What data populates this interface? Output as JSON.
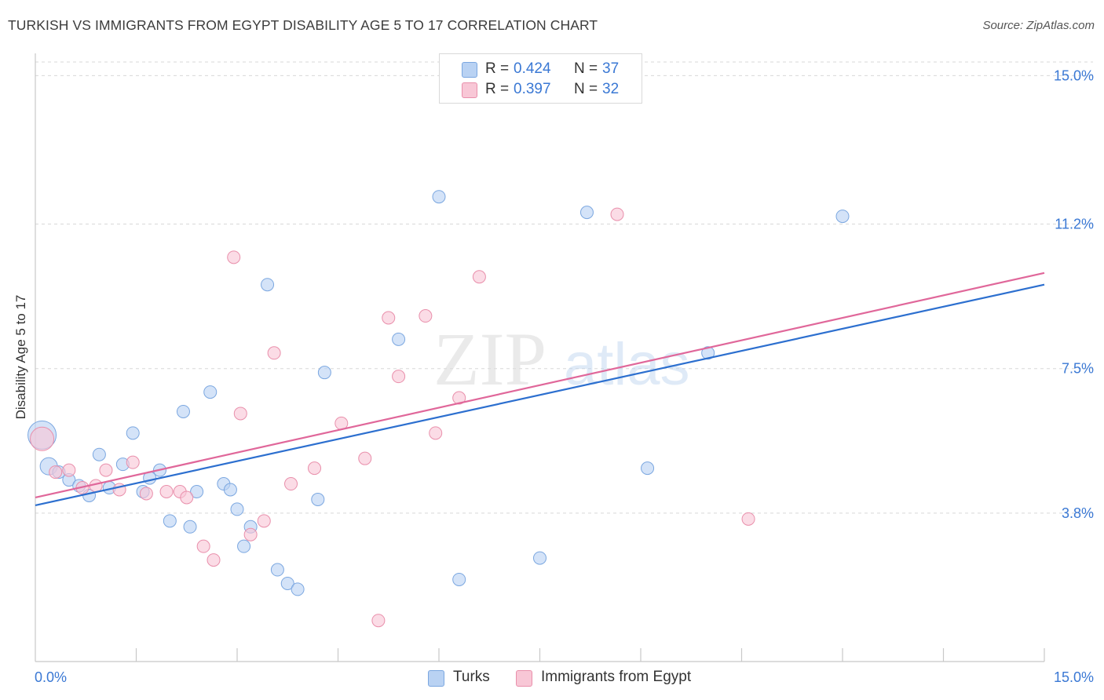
{
  "title": "TURKISH VS IMMIGRANTS FROM EGYPT DISABILITY AGE 5 TO 17 CORRELATION CHART",
  "source": "Source: ZipAtlas.com",
  "watermark": {
    "zip": "ZIP",
    "atlas": "atlas"
  },
  "colors": {
    "turks_fill": "#b9d2f3",
    "turks_stroke": "#7ba7e0",
    "turks_line": "#2c6fcf",
    "egypt_fill": "#f8c7d6",
    "egypt_stroke": "#e98fab",
    "egypt_line": "#e0679a",
    "axis_text": "#3a78d4",
    "grid": "#d8d8d8"
  },
  "legend_top": [
    {
      "series": "Turks",
      "r_label": "R =",
      "r_value": "0.424",
      "n_label": "N =",
      "n_value": "37"
    },
    {
      "series": "Immigrants from Egypt",
      "r_label": "R =",
      "r_value": "0.397",
      "n_label": "N =",
      "n_value": "32"
    }
  ],
  "chart_data": {
    "type": "scatter",
    "title": "TURKISH VS IMMIGRANTS FROM EGYPT DISABILITY AGE 5 TO 17 CORRELATION CHART",
    "xlabel": "",
    "ylabel": "Disability Age 5 to 17",
    "xlim": [
      0,
      15
    ],
    "ylim": [
      0,
      15.35
    ],
    "x_tick_labels": [
      {
        "value": 0,
        "label": "0.0%"
      },
      {
        "value": 15,
        "label": "15.0%"
      }
    ],
    "y_tick_labels": [
      {
        "value": 3.8,
        "label": "3.8%"
      },
      {
        "value": 7.5,
        "label": "7.5%"
      },
      {
        "value": 11.2,
        "label": "11.2%"
      },
      {
        "value": 15.0,
        "label": "15.0%"
      }
    ],
    "y_gridlines": [
      3.8,
      7.5,
      11.2,
      15.0
    ],
    "x_minor_ticks": [
      1.5,
      3.0,
      4.5,
      6.0,
      7.5,
      9.0,
      10.5,
      12.0,
      13.5,
      15.0
    ],
    "legend": [
      "Turks",
      "Immigrants from Egypt"
    ],
    "series": [
      {
        "name": "Turks",
        "r": 0.424,
        "n": 37,
        "trend": {
          "x": [
            0,
            15
          ],
          "y": [
            4.0,
            9.65
          ]
        },
        "points": [
          {
            "x": 0.1,
            "y": 5.8,
            "size": 18
          },
          {
            "x": 0.2,
            "y": 5.0,
            "size": 11
          },
          {
            "x": 0.35,
            "y": 4.85
          },
          {
            "x": 0.5,
            "y": 4.65
          },
          {
            "x": 0.65,
            "y": 4.5
          },
          {
            "x": 0.8,
            "y": 4.25
          },
          {
            "x": 0.95,
            "y": 5.3
          },
          {
            "x": 1.1,
            "y": 4.45
          },
          {
            "x": 1.3,
            "y": 5.05
          },
          {
            "x": 1.45,
            "y": 5.85
          },
          {
            "x": 1.6,
            "y": 4.35
          },
          {
            "x": 1.7,
            "y": 4.7
          },
          {
            "x": 1.85,
            "y": 4.9
          },
          {
            "x": 2.0,
            "y": 3.6
          },
          {
            "x": 2.2,
            "y": 6.4
          },
          {
            "x": 2.3,
            "y": 3.45
          },
          {
            "x": 2.4,
            "y": 4.35
          },
          {
            "x": 2.6,
            "y": 6.9
          },
          {
            "x": 2.8,
            "y": 4.55
          },
          {
            "x": 2.9,
            "y": 4.4
          },
          {
            "x": 3.0,
            "y": 3.9
          },
          {
            "x": 3.1,
            "y": 2.95
          },
          {
            "x": 3.2,
            "y": 3.45
          },
          {
            "x": 3.45,
            "y": 9.65
          },
          {
            "x": 3.6,
            "y": 2.35
          },
          {
            "x": 3.75,
            "y": 2.0
          },
          {
            "x": 3.9,
            "y": 1.85
          },
          {
            "x": 4.2,
            "y": 4.15
          },
          {
            "x": 4.3,
            "y": 7.4
          },
          {
            "x": 5.4,
            "y": 8.25
          },
          {
            "x": 6.0,
            "y": 11.9
          },
          {
            "x": 6.3,
            "y": 2.1
          },
          {
            "x": 7.5,
            "y": 2.65
          },
          {
            "x": 8.2,
            "y": 11.5
          },
          {
            "x": 9.1,
            "y": 4.95
          },
          {
            "x": 10.0,
            "y": 7.9
          },
          {
            "x": 12.0,
            "y": 11.4
          }
        ]
      },
      {
        "name": "Immigrants from Egypt",
        "r": 0.397,
        "n": 32,
        "trend": {
          "x": [
            0,
            15
          ],
          "y": [
            4.2,
            9.95
          ]
        },
        "points": [
          {
            "x": 0.1,
            "y": 5.7,
            "size": 15
          },
          {
            "x": 0.3,
            "y": 4.85
          },
          {
            "x": 0.5,
            "y": 4.9
          },
          {
            "x": 0.7,
            "y": 4.45
          },
          {
            "x": 0.9,
            "y": 4.5
          },
          {
            "x": 1.05,
            "y": 4.9
          },
          {
            "x": 1.25,
            "y": 4.4
          },
          {
            "x": 1.45,
            "y": 5.1
          },
          {
            "x": 1.65,
            "y": 4.3
          },
          {
            "x": 1.95,
            "y": 4.35
          },
          {
            "x": 2.15,
            "y": 4.35
          },
          {
            "x": 2.25,
            "y": 4.2
          },
          {
            "x": 2.5,
            "y": 2.95
          },
          {
            "x": 2.65,
            "y": 2.6
          },
          {
            "x": 2.95,
            "y": 10.35
          },
          {
            "x": 3.05,
            "y": 6.35
          },
          {
            "x": 3.2,
            "y": 3.25
          },
          {
            "x": 3.4,
            "y": 3.6
          },
          {
            "x": 3.55,
            "y": 7.9
          },
          {
            "x": 3.8,
            "y": 4.55
          },
          {
            "x": 4.15,
            "y": 4.95
          },
          {
            "x": 4.55,
            "y": 6.1
          },
          {
            "x": 4.9,
            "y": 5.2
          },
          {
            "x": 5.1,
            "y": 1.05
          },
          {
            "x": 5.25,
            "y": 8.8
          },
          {
            "x": 5.4,
            "y": 7.3
          },
          {
            "x": 5.8,
            "y": 8.85
          },
          {
            "x": 5.95,
            "y": 5.85
          },
          {
            "x": 6.3,
            "y": 6.75
          },
          {
            "x": 6.6,
            "y": 9.85
          },
          {
            "x": 8.65,
            "y": 11.45
          },
          {
            "x": 10.6,
            "y": 3.65
          }
        ]
      }
    ]
  }
}
